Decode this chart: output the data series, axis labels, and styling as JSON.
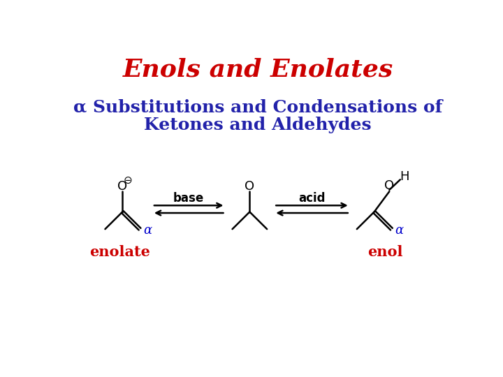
{
  "title": "Enols and Enolates",
  "title_color": "#cc0000",
  "subtitle_line1": "α Substitutions and Condensations of",
  "subtitle_line2": "Ketones and Aldehydes",
  "subtitle_color": "#2222aa",
  "bg_color": "#ffffff",
  "label_enolate": "enolate",
  "label_enol": "enol",
  "label_color": "#cc0000",
  "alpha_color": "#0000cc",
  "arrow_color": "#000000",
  "struct_color": "#000000",
  "title_fontsize": 26,
  "subtitle_fontsize": 18,
  "struct_fontsize": 13,
  "label_fontsize": 15,
  "arrow_fontsize": 12
}
